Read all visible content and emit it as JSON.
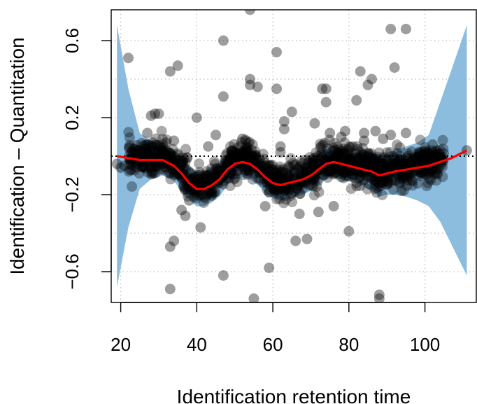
{
  "chart_data": {
    "type": "scatter",
    "title": "",
    "xlabel": "Identification retention time",
    "ylabel": "Identification – Quantitation",
    "xlim": [
      17.5,
      113.5
    ],
    "ylim": [
      -0.76,
      0.76
    ],
    "xticks": [
      20,
      40,
      60,
      80,
      100
    ],
    "xtick_labels": [
      "20",
      "40",
      "60",
      "80",
      "100"
    ],
    "yticks": [
      -0.6,
      -0.2,
      0.2,
      0.6
    ],
    "ytick_labels": [
      "−0.6",
      "−0.2",
      "0.2",
      "0.6"
    ],
    "gridlines_y": [
      -0.6,
      -0.4,
      -0.2,
      0,
      0.2,
      0.4,
      0.6
    ],
    "grid": "dotted",
    "reference_line": {
      "y": 0,
      "style": "dotted",
      "color": "#000000"
    },
    "colors": {
      "points": "#000000",
      "band": "#7fb5da",
      "trend": "#ff0000",
      "grid": "#bdbdbd"
    },
    "trend": {
      "x": [
        19,
        22,
        25,
        28,
        31,
        34,
        36,
        38,
        40,
        42,
        44,
        46,
        48,
        50,
        52,
        54,
        56,
        58,
        60,
        62,
        64,
        66,
        68,
        70,
        72,
        74,
        76,
        78,
        80,
        82,
        84,
        86,
        88,
        90,
        92,
        95,
        98,
        101,
        104,
        107,
        111
      ],
      "y": [
        0.0,
        -0.01,
        -0.02,
        -0.02,
        -0.02,
        -0.05,
        -0.09,
        -0.14,
        -0.17,
        -0.17,
        -0.15,
        -0.12,
        -0.07,
        -0.04,
        -0.03,
        -0.04,
        -0.07,
        -0.11,
        -0.14,
        -0.15,
        -0.14,
        -0.13,
        -0.12,
        -0.1,
        -0.07,
        -0.04,
        -0.03,
        -0.04,
        -0.05,
        -0.06,
        -0.07,
        -0.08,
        -0.1,
        -0.09,
        -0.08,
        -0.07,
        -0.06,
        -0.05,
        -0.03,
        -0.01,
        0.03
      ]
    },
    "band": {
      "x": [
        19,
        22,
        25,
        28,
        31,
        34,
        36,
        38,
        40,
        42,
        44,
        46,
        48,
        50,
        52,
        54,
        56,
        58,
        60,
        62,
        64,
        66,
        68,
        70,
        72,
        74,
        76,
        78,
        80,
        82,
        84,
        86,
        88,
        90,
        92,
        95,
        98,
        101,
        104,
        107,
        111
      ],
      "upper": [
        0.68,
        0.35,
        0.12,
        0.08,
        0.06,
        0.03,
        0.0,
        -0.05,
        -0.08,
        -0.08,
        -0.06,
        -0.03,
        0.01,
        0.04,
        0.05,
        0.04,
        0.01,
        -0.03,
        -0.06,
        -0.07,
        -0.06,
        -0.05,
        -0.04,
        -0.02,
        0.01,
        0.04,
        0.05,
        0.04,
        0.03,
        0.02,
        0.02,
        0.02,
        0.01,
        0.02,
        0.03,
        0.05,
        0.07,
        0.11,
        0.28,
        0.45,
        0.68
      ],
      "lower": [
        -0.68,
        -0.37,
        -0.17,
        -0.12,
        -0.1,
        -0.13,
        -0.18,
        -0.23,
        -0.26,
        -0.26,
        -0.24,
        -0.21,
        -0.15,
        -0.12,
        -0.11,
        -0.12,
        -0.15,
        -0.19,
        -0.22,
        -0.23,
        -0.22,
        -0.21,
        -0.2,
        -0.18,
        -0.15,
        -0.12,
        -0.11,
        -0.12,
        -0.13,
        -0.14,
        -0.16,
        -0.18,
        -0.21,
        -0.2,
        -0.2,
        -0.21,
        -0.23,
        -0.26,
        -0.34,
        -0.46,
        -0.62
      ]
    },
    "outliers": {
      "x": [
        19,
        20,
        21,
        22,
        27,
        28,
        29,
        30,
        33,
        33,
        33,
        34,
        34,
        35,
        36,
        37,
        38,
        40,
        41,
        43,
        45,
        47,
        47,
        47,
        48,
        49,
        52,
        54,
        54,
        54,
        55,
        56,
        58,
        59,
        61,
        61,
        62,
        62,
        63,
        63,
        65,
        66,
        67,
        69,
        71,
        72,
        73,
        74,
        74,
        75,
        76,
        77,
        78,
        79,
        80,
        81,
        82,
        83,
        84,
        84,
        85,
        86,
        87,
        88,
        88,
        89,
        91,
        91,
        92,
        95,
        95,
        101,
        102,
        111
      ],
      "y": [
        -0.04,
        -0.06,
        -0.05,
        0.51,
        0.12,
        0.21,
        0.22,
        0.22,
        0.44,
        -0.47,
        -0.69,
        0.08,
        -0.44,
        0.47,
        -0.28,
        -0.31,
        -0.23,
        0.2,
        -0.37,
        0.05,
        0.11,
        0.31,
        -0.62,
        0.6,
        -0.05,
        -0.09,
        0.09,
        0.76,
        0.4,
        0.37,
        -0.74,
        0.36,
        -0.26,
        -0.58,
        0.54,
        0.35,
        0.05,
        0.02,
        0.18,
        0.14,
        0.23,
        -0.44,
        -0.3,
        -0.43,
        0.17,
        -0.29,
        0.35,
        0.35,
        0.28,
        0.12,
        -0.26,
        0.05,
        0.1,
        0.13,
        -0.39,
        0.05,
        0.29,
        0.44,
        0.08,
        0.12,
        0.37,
        0.4,
        0.13,
        -0.72,
        -0.74,
        0.09,
        0.66,
        0.11,
        0.46,
        0.66,
        0.12,
        0.01,
        0.06,
        0.03
      ]
    },
    "dense_points": {
      "description_hidden": true,
      "count": 1300,
      "x_range": [
        22,
        105
      ],
      "follows": "trend",
      "spread": 0.045
    }
  }
}
